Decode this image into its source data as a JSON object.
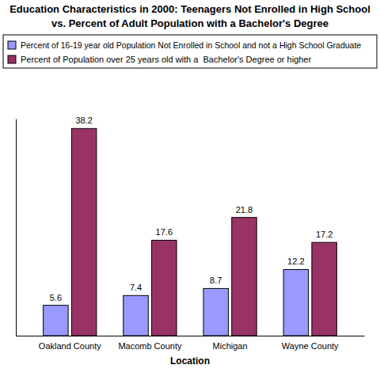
{
  "chart_data": {
    "type": "bar",
    "title": "Education Characteristics in 2000: Teenagers Not Enrolled in High School",
    "subtitle": "vs. Percent of Adult Population with a Bachelor's Degree",
    "x_label": "Location",
    "categories": [
      "Oakland County",
      "Macomb County",
      "Michigan",
      "Wayne County"
    ],
    "series": [
      {
        "name": "Percent of 16-19 year old Population Not Enrolled in School and not a High School Graduate",
        "color": "#9999ff",
        "values": [
          5.6,
          7.4,
          8.7,
          12.2
        ]
      },
      {
        "name": "Percent of Population over 25 years old with a  Bachelor's Degree or higher",
        "color": "#993366",
        "values": [
          38.2,
          17.6,
          21.8,
          17.2
        ]
      }
    ],
    "ylim": [
      0,
      40
    ],
    "tick_labels": "x",
    "data_labels": true,
    "legend": "top"
  }
}
